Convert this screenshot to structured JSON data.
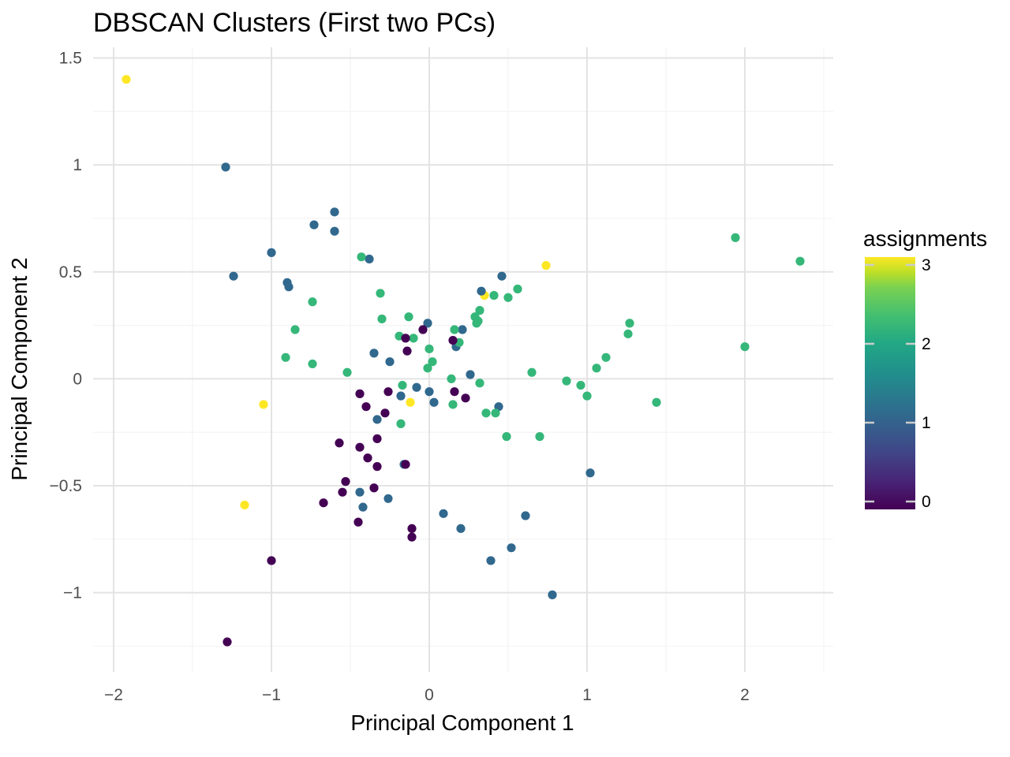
{
  "chart_data": {
    "type": "scatter",
    "title": "DBSCAN Clusters (First two PCs)",
    "xlabel": "Principal Component 1",
    "ylabel": "Principal Component 2",
    "xlim": [
      -2.13,
      2.56
    ],
    "ylim": [
      -1.37,
      1.55
    ],
    "x_ticks": [
      -2,
      -1,
      0,
      1,
      2
    ],
    "x_tick_labels": [
      "−2",
      "−1",
      "0",
      "1",
      "2"
    ],
    "y_ticks": [
      -1,
      -0.5,
      0,
      0.5,
      1,
      1.5
    ],
    "y_tick_labels": [
      "−1",
      "−0.5",
      "0",
      "0.5",
      "1",
      "1.5"
    ],
    "grid": true,
    "legend": {
      "title": "assignments",
      "placement": "right",
      "type": "colorbar",
      "range": [
        0,
        3
      ],
      "ticks": [
        0,
        1,
        2,
        3
      ],
      "tick_labels": [
        "0",
        "1",
        "2",
        "3"
      ],
      "colors": [
        "#440154",
        "#31688e",
        "#35b779",
        "#fde725"
      ]
    },
    "points": [
      {
        "x": -1.92,
        "y": 1.4,
        "c": 3
      },
      {
        "x": -1.17,
        "y": -0.59,
        "c": 3
      },
      {
        "x": -1.05,
        "y": -0.12,
        "c": 3
      },
      {
        "x": -0.12,
        "y": -0.11,
        "c": 3
      },
      {
        "x": 0.35,
        "y": 0.39,
        "c": 3
      },
      {
        "x": 0.74,
        "y": 0.53,
        "c": 3
      },
      {
        "x": -1.29,
        "y": 0.99,
        "c": 1
      },
      {
        "x": -1.24,
        "y": 0.48,
        "c": 1
      },
      {
        "x": -1.0,
        "y": 0.59,
        "c": 1
      },
      {
        "x": -0.9,
        "y": 0.45,
        "c": 1
      },
      {
        "x": -0.89,
        "y": 0.43,
        "c": 1
      },
      {
        "x": -0.73,
        "y": 0.72,
        "c": 1
      },
      {
        "x": -0.6,
        "y": 0.78,
        "c": 1
      },
      {
        "x": -0.6,
        "y": 0.69,
        "c": 1
      },
      {
        "x": -0.38,
        "y": 0.56,
        "c": 1
      },
      {
        "x": -0.35,
        "y": 0.12,
        "c": 1
      },
      {
        "x": -0.25,
        "y": 0.08,
        "c": 1
      },
      {
        "x": -0.01,
        "y": 0.26,
        "c": 1
      },
      {
        "x": 0.17,
        "y": 0.15,
        "c": 1
      },
      {
        "x": 0.21,
        "y": 0.23,
        "c": 1
      },
      {
        "x": 0.26,
        "y": 0.02,
        "c": 1
      },
      {
        "x": 0.33,
        "y": 0.41,
        "c": 1
      },
      {
        "x": 0.46,
        "y": 0.48,
        "c": 1
      },
      {
        "x": -0.08,
        "y": -0.04,
        "c": 1
      },
      {
        "x": 0.0,
        "y": -0.06,
        "c": 1
      },
      {
        "x": 0.03,
        "y": -0.11,
        "c": 1
      },
      {
        "x": -0.18,
        "y": -0.08,
        "c": 1
      },
      {
        "x": -0.33,
        "y": -0.19,
        "c": 1
      },
      {
        "x": -0.16,
        "y": -0.4,
        "c": 1
      },
      {
        "x": -0.44,
        "y": -0.53,
        "c": 1
      },
      {
        "x": -0.42,
        "y": -0.6,
        "c": 1
      },
      {
        "x": -0.26,
        "y": -0.56,
        "c": 1
      },
      {
        "x": 0.09,
        "y": -0.63,
        "c": 1
      },
      {
        "x": 0.2,
        "y": -0.7,
        "c": 1
      },
      {
        "x": 0.44,
        "y": -0.13,
        "c": 1
      },
      {
        "x": 0.61,
        "y": -0.64,
        "c": 1
      },
      {
        "x": 0.52,
        "y": -0.79,
        "c": 1
      },
      {
        "x": 0.39,
        "y": -0.85,
        "c": 1
      },
      {
        "x": 0.78,
        "y": -1.01,
        "c": 1
      },
      {
        "x": 1.02,
        "y": -0.44,
        "c": 1
      },
      {
        "x": -0.43,
        "y": 0.57,
        "c": 2
      },
      {
        "x": -0.31,
        "y": 0.4,
        "c": 2
      },
      {
        "x": -0.3,
        "y": 0.28,
        "c": 2
      },
      {
        "x": -0.74,
        "y": 0.36,
        "c": 2
      },
      {
        "x": -0.85,
        "y": 0.23,
        "c": 2
      },
      {
        "x": -0.91,
        "y": 0.1,
        "c": 2
      },
      {
        "x": -0.74,
        "y": 0.07,
        "c": 2
      },
      {
        "x": -0.52,
        "y": 0.03,
        "c": 2
      },
      {
        "x": -0.13,
        "y": 0.29,
        "c": 2
      },
      {
        "x": -0.19,
        "y": 0.2,
        "c": 2
      },
      {
        "x": -0.1,
        "y": 0.19,
        "c": 2
      },
      {
        "x": 0.0,
        "y": 0.14,
        "c": 2
      },
      {
        "x": 0.02,
        "y": 0.08,
        "c": 2
      },
      {
        "x": -0.01,
        "y": 0.05,
        "c": 2
      },
      {
        "x": -0.17,
        "y": -0.03,
        "c": 2
      },
      {
        "x": -0.18,
        "y": -0.21,
        "c": 2
      },
      {
        "x": 0.14,
        "y": 0.0,
        "c": 2
      },
      {
        "x": 0.15,
        "y": -0.12,
        "c": 2
      },
      {
        "x": 0.16,
        "y": 0.23,
        "c": 2
      },
      {
        "x": 0.19,
        "y": 0.17,
        "c": 2
      },
      {
        "x": 0.29,
        "y": 0.29,
        "c": 2
      },
      {
        "x": 0.3,
        "y": 0.26,
        "c": 2
      },
      {
        "x": 0.31,
        "y": 0.27,
        "c": 2
      },
      {
        "x": 0.32,
        "y": 0.32,
        "c": 2
      },
      {
        "x": 0.41,
        "y": 0.39,
        "c": 2
      },
      {
        "x": 0.5,
        "y": 0.38,
        "c": 2
      },
      {
        "x": 0.56,
        "y": 0.42,
        "c": 2
      },
      {
        "x": 0.32,
        "y": -0.02,
        "c": 2
      },
      {
        "x": 0.36,
        "y": -0.16,
        "c": 2
      },
      {
        "x": 0.42,
        "y": -0.16,
        "c": 2
      },
      {
        "x": 0.49,
        "y": -0.27,
        "c": 2
      },
      {
        "x": 0.65,
        "y": 0.03,
        "c": 2
      },
      {
        "x": 0.7,
        "y": -0.27,
        "c": 2
      },
      {
        "x": 0.87,
        "y": -0.01,
        "c": 2
      },
      {
        "x": 0.96,
        "y": -0.03,
        "c": 2
      },
      {
        "x": 1.0,
        "y": -0.08,
        "c": 2
      },
      {
        "x": 1.06,
        "y": 0.05,
        "c": 2
      },
      {
        "x": 1.12,
        "y": 0.1,
        "c": 2
      },
      {
        "x": 1.26,
        "y": 0.21,
        "c": 2
      },
      {
        "x": 1.27,
        "y": 0.26,
        "c": 2
      },
      {
        "x": 1.44,
        "y": -0.11,
        "c": 2
      },
      {
        "x": 1.94,
        "y": 0.66,
        "c": 2
      },
      {
        "x": 2.0,
        "y": 0.15,
        "c": 2
      },
      {
        "x": 2.35,
        "y": 0.55,
        "c": 2
      },
      {
        "x": -0.04,
        "y": 0.23,
        "c": 0
      },
      {
        "x": -0.15,
        "y": 0.19,
        "c": 0
      },
      {
        "x": -0.14,
        "y": 0.13,
        "c": 0
      },
      {
        "x": 0.15,
        "y": 0.18,
        "c": 0
      },
      {
        "x": 0.16,
        "y": -0.06,
        "c": 0
      },
      {
        "x": 0.23,
        "y": -0.09,
        "c": 0
      },
      {
        "x": -0.44,
        "y": -0.07,
        "c": 0
      },
      {
        "x": -0.4,
        "y": -0.13,
        "c": 0
      },
      {
        "x": -0.26,
        "y": -0.06,
        "c": 0
      },
      {
        "x": -0.28,
        "y": -0.16,
        "c": 0
      },
      {
        "x": -0.57,
        "y": -0.3,
        "c": 0
      },
      {
        "x": -0.44,
        "y": -0.32,
        "c": 0
      },
      {
        "x": -0.39,
        "y": -0.37,
        "c": 0
      },
      {
        "x": -0.33,
        "y": -0.28,
        "c": 0
      },
      {
        "x": -0.33,
        "y": -0.41,
        "c": 0
      },
      {
        "x": -0.15,
        "y": -0.4,
        "c": 0
      },
      {
        "x": -0.53,
        "y": -0.48,
        "c": 0
      },
      {
        "x": -0.55,
        "y": -0.53,
        "c": 0
      },
      {
        "x": -0.35,
        "y": -0.51,
        "c": 0
      },
      {
        "x": -0.67,
        "y": -0.58,
        "c": 0
      },
      {
        "x": -0.45,
        "y": -0.67,
        "c": 0
      },
      {
        "x": -0.11,
        "y": -0.7,
        "c": 0
      },
      {
        "x": -0.11,
        "y": -0.74,
        "c": 0
      },
      {
        "x": -1.0,
        "y": -0.85,
        "c": 0
      },
      {
        "x": -1.28,
        "y": -1.23,
        "c": 0
      }
    ]
  }
}
